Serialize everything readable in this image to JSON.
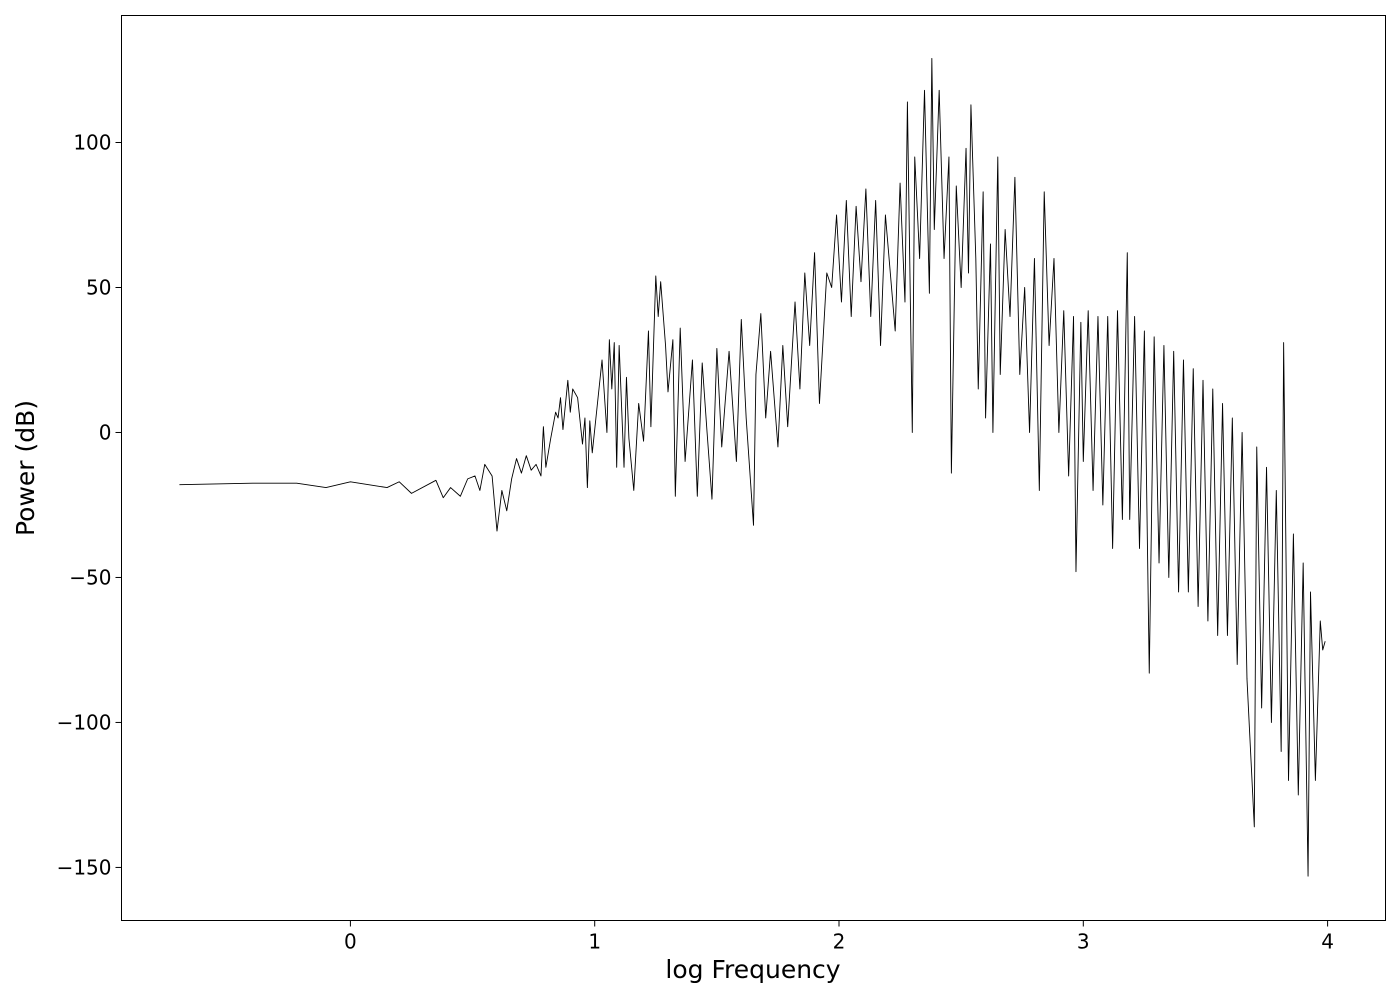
{
  "chart_data": {
    "type": "line",
    "x_label": "log Frequency",
    "y_label": "Power (dB)",
    "xlim": [
      -0.937,
      4.237
    ],
    "ylim": [
      -168.3,
      143.8
    ],
    "xticks": [
      0,
      1,
      2,
      3,
      4
    ],
    "yticks": [
      {
        "value": -150,
        "label": "−150"
      },
      {
        "value": -100,
        "label": "−100"
      },
      {
        "value": -50,
        "label": "−50"
      },
      0,
      50,
      100
    ],
    "grid": false,
    "series": [
      {
        "color": "#000000",
        "x": [
          -0.7,
          -0.4,
          -0.22,
          -0.1,
          0,
          0.15,
          0.2,
          0.25,
          0.35,
          0.38,
          0.41,
          0.45,
          0.48,
          0.51,
          0.53,
          0.55,
          0.58,
          0.6,
          0.62,
          0.64,
          0.66,
          0.68,
          0.7,
          0.72,
          0.74,
          0.76,
          0.78,
          0.79,
          0.8,
          0.82,
          0.84,
          0.85,
          0.86,
          0.87,
          0.89,
          0.9,
          0.91,
          0.93,
          0.95,
          0.96,
          0.97,
          0.98,
          0.99,
          1.01,
          1.03,
          1.05,
          1.06,
          1.07,
          1.08,
          1.09,
          1.1,
          1.12,
          1.13,
          1.14,
          1.16,
          1.18,
          1.2,
          1.22,
          1.23,
          1.25,
          1.26,
          1.27,
          1.29,
          1.3,
          1.32,
          1.33,
          1.35,
          1.37,
          1.4,
          1.42,
          1.44,
          1.46,
          1.48,
          1.5,
          1.52,
          1.55,
          1.58,
          1.6,
          1.62,
          1.65,
          1.66,
          1.68,
          1.7,
          1.72,
          1.75,
          1.77,
          1.79,
          1.82,
          1.84,
          1.86,
          1.88,
          1.9,
          1.92,
          1.95,
          1.97,
          1.99,
          2.01,
          2.03,
          2.05,
          2.07,
          2.09,
          2.11,
          2.13,
          2.15,
          2.17,
          2.19,
          2.21,
          2.23,
          2.25,
          2.27,
          2.28,
          2.3,
          2.31,
          2.33,
          2.35,
          2.37,
          2.38,
          2.39,
          2.41,
          2.43,
          2.45,
          2.46,
          2.48,
          2.5,
          2.52,
          2.53,
          2.54,
          2.56,
          2.57,
          2.59,
          2.6,
          2.62,
          2.63,
          2.65,
          2.66,
          2.68,
          2.7,
          2.72,
          2.74,
          2.76,
          2.78,
          2.8,
          2.82,
          2.84,
          2.86,
          2.88,
          2.9,
          2.92,
          2.94,
          2.96,
          2.97,
          2.99,
          3.0,
          3.02,
          3.04,
          3.06,
          3.08,
          3.1,
          3.12,
          3.14,
          3.16,
          3.18,
          3.19,
          3.21,
          3.23,
          3.25,
          3.27,
          3.29,
          3.31,
          3.33,
          3.35,
          3.37,
          3.39,
          3.41,
          3.43,
          3.45,
          3.47,
          3.49,
          3.51,
          3.53,
          3.55,
          3.57,
          3.59,
          3.61,
          3.63,
          3.65,
          3.67,
          3.7,
          3.71,
          3.73,
          3.75,
          3.77,
          3.79,
          3.81,
          3.82,
          3.84,
          3.86,
          3.88,
          3.9,
          3.92,
          3.93,
          3.95,
          3.97,
          3.98,
          3.99
        ],
        "values": [
          -18,
          -17.5,
          -17.5,
          -19,
          -17,
          -19,
          -17,
          -21,
          -16.5,
          -22.5,
          -19,
          -22,
          -16,
          -15,
          -20,
          -11,
          -15,
          -34,
          -20,
          -27,
          -16,
          -9,
          -14,
          -8,
          -13,
          -11,
          -15,
          2,
          -12,
          -2,
          7,
          5,
          12,
          1,
          18,
          7,
          15,
          12,
          -4,
          5,
          -19,
          4,
          -7,
          9,
          25,
          0,
          32,
          15,
          31,
          -12,
          30,
          -12,
          19,
          -2,
          -20,
          10,
          -3,
          35,
          2,
          54,
          40,
          52,
          30,
          14,
          32,
          -22,
          36,
          -10,
          25,
          -22,
          24,
          0,
          -23,
          29,
          -5,
          28,
          -10,
          39,
          5,
          -32,
          20,
          41,
          5,
          28,
          -5,
          30,
          2,
          45,
          15,
          55,
          30,
          62,
          10,
          55,
          50,
          75,
          45,
          80,
          40,
          78,
          52,
          84,
          40,
          80,
          30,
          75,
          55,
          35,
          86,
          45,
          114,
          0,
          95,
          60,
          118,
          48,
          129,
          70,
          118,
          60,
          95,
          -14,
          85,
          50,
          98,
          55,
          113,
          60,
          15,
          83,
          5,
          65,
          0,
          95,
          20,
          70,
          40,
          88,
          20,
          50,
          0,
          60,
          -20,
          83,
          30,
          60,
          0,
          42,
          -15,
          40,
          -48,
          38,
          -10,
          42,
          -20,
          40,
          -25,
          40,
          -40,
          42,
          -30,
          62,
          -30,
          40,
          -40,
          35,
          -83,
          33,
          -45,
          30,
          -50,
          28,
          -55,
          25,
          -55,
          22,
          -60,
          18,
          -65,
          15,
          -70,
          10,
          -70,
          5,
          -80,
          0,
          -85,
          -136,
          -5,
          -95,
          -12,
          -100,
          -20,
          -110,
          31,
          -120,
          -35,
          -125,
          -45,
          -153,
          -55,
          -120,
          -65,
          -75,
          -72
        ]
      }
    ]
  }
}
